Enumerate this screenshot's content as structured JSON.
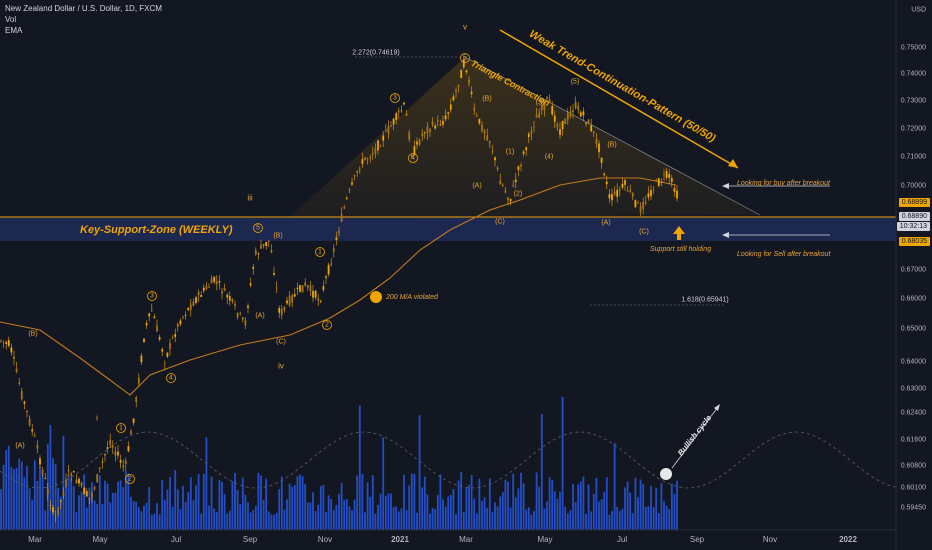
{
  "header": {
    "symbol": "New Zealand Dollar / U.S. Dollar, 1D, FXCM",
    "indicator_vol": "Vol",
    "indicator_ema": "EMA"
  },
  "axis": {
    "currency": "USD",
    "price_ticks": [
      "0.75000",
      "0.74000",
      "0.73000",
      "0.72000",
      "0.71000",
      "0.70000",
      "0.68000",
      "0.67000",
      "0.66000",
      "0.65000",
      "0.64000",
      "0.63000",
      "0.62400",
      "0.61600",
      "0.60800",
      "0.60100",
      "0.59450"
    ],
    "price_tags": {
      "upper": "0.68899",
      "current": "0.68890",
      "timer": "10:32:13",
      "lower": "0.68035"
    },
    "month_ticks": [
      "Mar",
      "May",
      "Jul",
      "Sep",
      "Nov",
      "2021",
      "Mar",
      "May",
      "Jul",
      "Sep",
      "Nov",
      "2022"
    ]
  },
  "colors": {
    "background": "#131722",
    "candle": "#f0a500",
    "ema": "#c47a1c",
    "volume": "#2962ff",
    "zone": "#1e2a55",
    "line": "#f0a500"
  },
  "annotations": {
    "key_support": "Key-Support-Zone (WEEKLY)",
    "triangle": "Triangle Contraction",
    "trend_pattern": "Weak Trend-Continuation-Pattern (50/50)",
    "buy_note": "Looking for buy after breakout",
    "sell_note": "Looking for Sell after breakout",
    "support_holding": "Support still holding",
    "ma_violated": "200 M/A violated",
    "bullish_cycle": "Bullish cycle",
    "fib_top": "2.272(0.74619)",
    "fib_bottom": "1.618(0.65941)"
  },
  "wave_labels": {
    "v": "v",
    "iii": "iii",
    "iv": "iv",
    "i": "i",
    "w3_top": "3",
    "w5_top": "5",
    "w4_top": "4",
    "w1_top": "1",
    "w2_top": "2",
    "A1": "(A)",
    "B1": "(B)",
    "C1": "(C)",
    "A2": "(A)",
    "B2": "(B)",
    "C2": "(C)",
    "A3": "(A)",
    "B3": "(B)",
    "C3": "(C)",
    "A4": "(A)",
    "B4": "(B)",
    "C4": "(C)",
    "n1": "(1)",
    "n2": "(2)",
    "n3": "(3)",
    "n4": "(4)",
    "n5": "(5)",
    "c1": "1",
    "c2": "2",
    "c3": "3",
    "c4": "4",
    "c5": "5"
  },
  "chart_data": {
    "type": "line",
    "instrument": "NZD/USD",
    "series": [
      {
        "name": "",
        "x": [
          "Mar",
          "May",
          "Jul",
          "Sep",
          "Nov",
          "2021",
          "Mar",
          "May",
          "Jul",
          "Aug"
        ],
        "values": [
          0.61,
          0.595,
          0.65,
          0.68,
          0.655,
          0.715,
          0.746,
          0.73,
          0.695,
          0.688
        ]
      }
    ],
    "ylim": [
      0.592,
      0.758
    ]
  }
}
